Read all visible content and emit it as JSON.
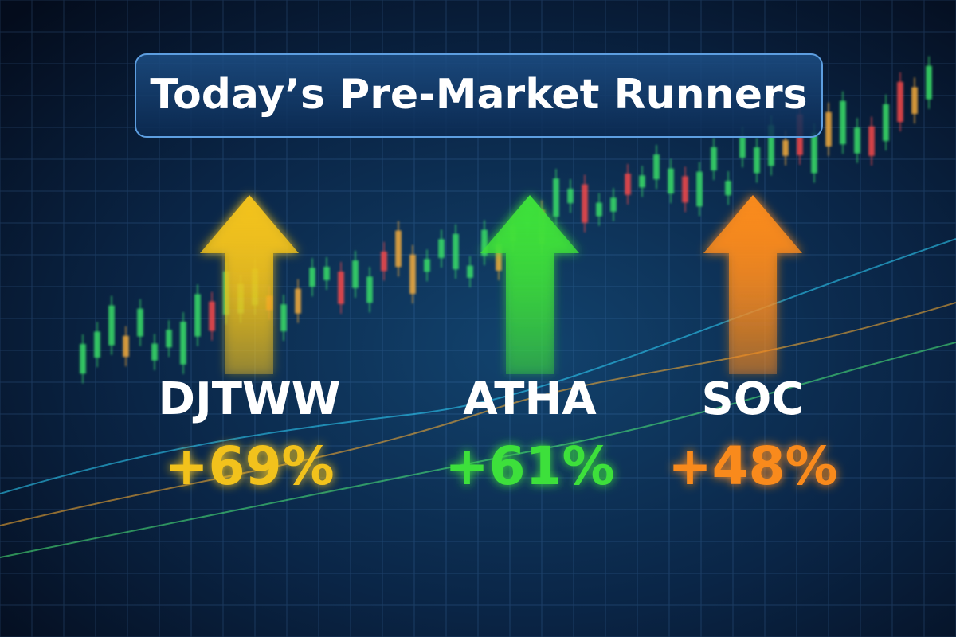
{
  "header": {
    "title": "Today’s Pre-Market Runners"
  },
  "runners": [
    {
      "ticker": "DJTWW",
      "change": "+69%",
      "color": "#f2c21b"
    },
    {
      "ticker": "ATHA",
      "change": "+61%",
      "color": "#3ee03a"
    },
    {
      "ticker": "SOC",
      "change": "+48%",
      "color": "#f98a1c"
    }
  ]
}
